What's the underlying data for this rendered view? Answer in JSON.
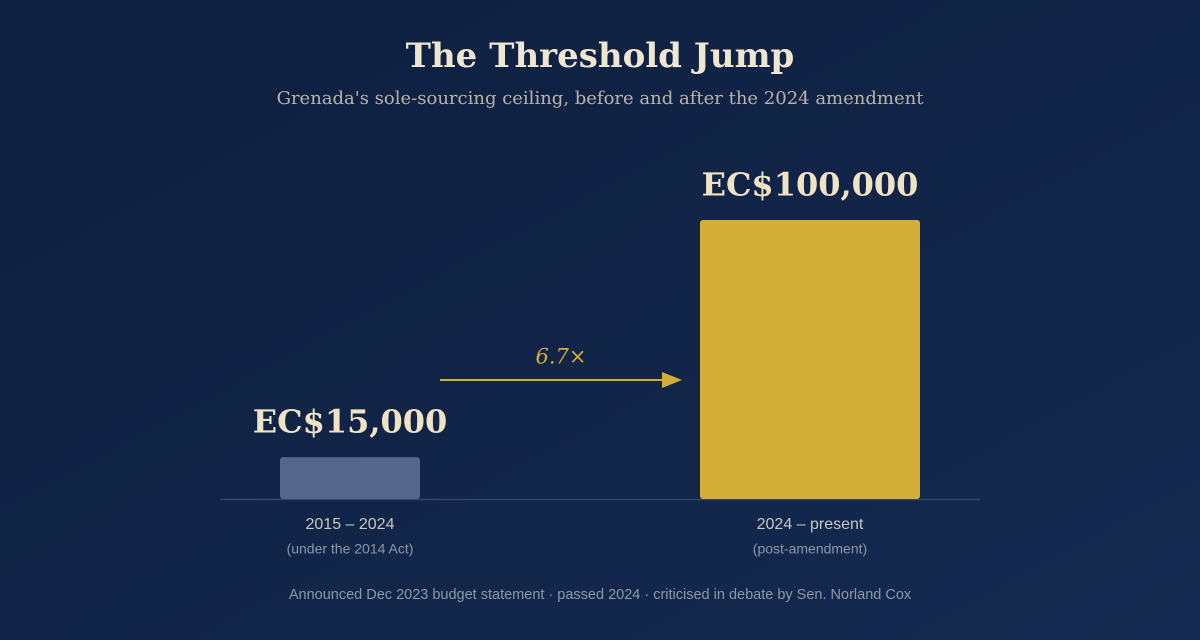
{
  "chart_data": {
    "type": "bar",
    "title": "The Threshold Jump",
    "subtitle": "Grenada's sole-sourcing ceiling, before and after the 2024 amendment",
    "categories": [
      "2015 – 2024",
      "2024 – present"
    ],
    "category_notes": [
      "(under the 2014 Act)",
      "(post-amendment)"
    ],
    "values": [
      15000,
      100000
    ],
    "value_labels": [
      "EC$15,000",
      "EC$100,000"
    ],
    "colors": [
      "#56658a",
      "#d4af37"
    ],
    "annotation": "6.7×",
    "note": "Announced Dec 2023 budget statement · passed 2024 · criticised in debate by Sen. Norland Cox"
  }
}
